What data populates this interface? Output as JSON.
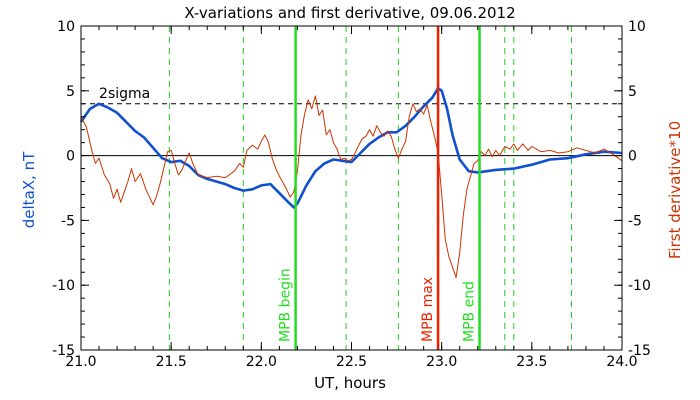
{
  "chart_data": {
    "type": "line",
    "title": "X-variations and first derivative, 09.06.2012",
    "xlabel": "UT, hours",
    "ylabel_left": "deltaX, nT",
    "ylabel_right": "First derivative*10",
    "xlim": [
      21.0,
      24.0
    ],
    "ylim": [
      -15,
      10
    ],
    "x_ticks": [
      21.0,
      21.5,
      22.0,
      22.5,
      23.0,
      23.5,
      24.0
    ],
    "x_tick_labels": [
      "21.0",
      "21.5",
      "22.0",
      "22.5",
      "23.0",
      "23.5",
      "24.0"
    ],
    "y_ticks": [
      10,
      5,
      0,
      -5,
      -10,
      -15
    ],
    "y_tick_labels": [
      "10",
      "5",
      "0",
      "-5",
      "-10",
      "-15"
    ],
    "series": [
      {
        "axis": "left",
        "color": "#1050d0",
        "points": [
          [
            21.0,
            2.6
          ],
          [
            21.05,
            3.6
          ],
          [
            21.1,
            4.0
          ],
          [
            21.15,
            3.7
          ],
          [
            21.2,
            3.3
          ],
          [
            21.25,
            2.6
          ],
          [
            21.3,
            1.9
          ],
          [
            21.35,
            1.4
          ],
          [
            21.4,
            0.6
          ],
          [
            21.45,
            -0.2
          ],
          [
            21.5,
            -0.5
          ],
          [
            21.55,
            -0.4
          ],
          [
            21.6,
            -0.8
          ],
          [
            21.65,
            -1.5
          ],
          [
            21.7,
            -1.8
          ],
          [
            21.75,
            -2.0
          ],
          [
            21.8,
            -2.2
          ],
          [
            21.85,
            -2.5
          ],
          [
            21.9,
            -2.7
          ],
          [
            21.95,
            -2.6
          ],
          [
            22.0,
            -2.3
          ],
          [
            22.05,
            -2.2
          ],
          [
            22.1,
            -2.9
          ],
          [
            22.15,
            -3.6
          ],
          [
            22.18,
            -4.0
          ],
          [
            22.2,
            -3.7
          ],
          [
            22.25,
            -2.3
          ],
          [
            22.3,
            -1.2
          ],
          [
            22.35,
            -0.6
          ],
          [
            22.4,
            -0.3
          ],
          [
            22.45,
            -0.4
          ],
          [
            22.5,
            -0.5
          ],
          [
            22.55,
            0.2
          ],
          [
            22.6,
            0.9
          ],
          [
            22.65,
            1.4
          ],
          [
            22.7,
            1.8
          ],
          [
            22.75,
            1.8
          ],
          [
            22.8,
            2.3
          ],
          [
            22.85,
            3.0
          ],
          [
            22.9,
            3.8
          ],
          [
            22.95,
            4.5
          ],
          [
            22.98,
            5.2
          ],
          [
            23.0,
            5.0
          ],
          [
            23.03,
            3.6
          ],
          [
            23.06,
            1.6
          ],
          [
            23.1,
            -0.3
          ],
          [
            23.15,
            -1.2
          ],
          [
            23.2,
            -1.3
          ],
          [
            23.25,
            -1.2
          ],
          [
            23.3,
            -1.1
          ],
          [
            23.4,
            -1.0
          ],
          [
            23.5,
            -0.7
          ],
          [
            23.6,
            -0.3
          ],
          [
            23.7,
            -0.2
          ],
          [
            23.8,
            0.1
          ],
          [
            23.9,
            0.3
          ],
          [
            24.0,
            0.2
          ]
        ]
      },
      {
        "axis": "right",
        "color": "#cc3300",
        "points": [
          [
            21.0,
            3.0
          ],
          [
            21.03,
            2.2
          ],
          [
            21.06,
            0.4
          ],
          [
            21.08,
            -0.6
          ],
          [
            21.1,
            -0.2
          ],
          [
            21.13,
            -1.5
          ],
          [
            21.16,
            -2.2
          ],
          [
            21.18,
            -3.3
          ],
          [
            21.2,
            -2.6
          ],
          [
            21.22,
            -3.6
          ],
          [
            21.24,
            -2.8
          ],
          [
            21.26,
            -2.0
          ],
          [
            21.28,
            -1.0
          ],
          [
            21.3,
            -2.0
          ],
          [
            21.33,
            -1.4
          ],
          [
            21.36,
            -2.6
          ],
          [
            21.38,
            -3.2
          ],
          [
            21.4,
            -3.8
          ],
          [
            21.42,
            -3.1
          ],
          [
            21.44,
            -2.1
          ],
          [
            21.46,
            -0.9
          ],
          [
            21.48,
            0.3
          ],
          [
            21.5,
            0.4
          ],
          [
            21.52,
            -0.6
          ],
          [
            21.54,
            -1.5
          ],
          [
            21.56,
            -1.1
          ],
          [
            21.58,
            -0.4
          ],
          [
            21.6,
            0.2
          ],
          [
            21.62,
            -0.6
          ],
          [
            21.65,
            -1.5
          ],
          [
            21.7,
            -1.7
          ],
          [
            21.75,
            -1.6
          ],
          [
            21.8,
            -1.7
          ],
          [
            21.85,
            -1.2
          ],
          [
            21.88,
            -0.6
          ],
          [
            21.9,
            -0.9
          ],
          [
            21.92,
            0.4
          ],
          [
            21.95,
            0.8
          ],
          [
            21.98,
            0.5
          ],
          [
            22.0,
            1.1
          ],
          [
            22.02,
            1.6
          ],
          [
            22.04,
            1.0
          ],
          [
            22.06,
            -0.2
          ],
          [
            22.08,
            -1.0
          ],
          [
            22.1,
            -1.6
          ],
          [
            22.12,
            -2.1
          ],
          [
            22.14,
            -2.6
          ],
          [
            22.16,
            -3.2
          ],
          [
            22.18,
            -2.8
          ],
          [
            22.2,
            -1.2
          ],
          [
            22.22,
            1.6
          ],
          [
            22.24,
            3.2
          ],
          [
            22.26,
            4.3
          ],
          [
            22.28,
            3.6
          ],
          [
            22.3,
            4.6
          ],
          [
            22.32,
            3.1
          ],
          [
            22.34,
            3.5
          ],
          [
            22.36,
            1.6
          ],
          [
            22.38,
            2.0
          ],
          [
            22.4,
            1.0
          ],
          [
            22.42,
            0.5
          ],
          [
            22.44,
            -0.3
          ],
          [
            22.46,
            -0.2
          ],
          [
            22.48,
            -0.4
          ],
          [
            22.5,
            -0.3
          ],
          [
            22.52,
            0.2
          ],
          [
            22.54,
            0.8
          ],
          [
            22.56,
            1.3
          ],
          [
            22.58,
            1.5
          ],
          [
            22.6,
            2.0
          ],
          [
            22.62,
            1.5
          ],
          [
            22.64,
            2.3
          ],
          [
            22.66,
            1.8
          ],
          [
            22.68,
            1.5
          ],
          [
            22.7,
            1.9
          ],
          [
            22.72,
            1.5
          ],
          [
            22.74,
            0.5
          ],
          [
            22.76,
            -0.2
          ],
          [
            22.78,
            0.5
          ],
          [
            22.8,
            1.1
          ],
          [
            22.82,
            3.0
          ],
          [
            22.84,
            4.0
          ],
          [
            22.86,
            3.4
          ],
          [
            22.88,
            3.6
          ],
          [
            22.9,
            3.2
          ],
          [
            22.92,
            3.9
          ],
          [
            22.94,
            2.6
          ],
          [
            22.96,
            1.5
          ],
          [
            22.98,
            0.2
          ],
          [
            23.0,
            -3.0
          ],
          [
            23.02,
            -6.5
          ],
          [
            23.04,
            -7.8
          ],
          [
            23.06,
            -8.6
          ],
          [
            23.08,
            -9.4
          ],
          [
            23.1,
            -7.5
          ],
          [
            23.12,
            -4.6
          ],
          [
            23.14,
            -2.6
          ],
          [
            23.16,
            -1.6
          ],
          [
            23.18,
            -0.6
          ],
          [
            23.2,
            -0.4
          ],
          [
            23.22,
            0.3
          ],
          [
            23.24,
            0.0
          ],
          [
            23.26,
            0.5
          ],
          [
            23.28,
            -0.1
          ],
          [
            23.3,
            0.4
          ],
          [
            23.32,
            0.0
          ],
          [
            23.35,
            0.7
          ],
          [
            23.38,
            0.5
          ],
          [
            23.4,
            0.9
          ],
          [
            23.42,
            0.4
          ],
          [
            23.45,
            0.9
          ],
          [
            23.48,
            0.4
          ],
          [
            23.5,
            0.7
          ],
          [
            23.55,
            0.3
          ],
          [
            23.6,
            0.4
          ],
          [
            23.65,
            0.2
          ],
          [
            23.7,
            0.3
          ],
          [
            23.75,
            0.6
          ],
          [
            23.8,
            0.4
          ],
          [
            23.85,
            0.2
          ],
          [
            23.9,
            0.5
          ],
          [
            23.95,
            0.1
          ],
          [
            24.0,
            -0.4
          ]
        ]
      }
    ],
    "zero_line": 0,
    "threshold": {
      "label": "2sigma",
      "y": 4.0
    },
    "dashed_verticals": [
      21.49,
      21.9,
      22.47,
      22.76,
      23.35,
      23.4,
      23.72
    ],
    "markers": [
      {
        "label": "MPB begin",
        "x": 22.19,
        "color": "#22dd22"
      },
      {
        "label": "MPB max",
        "x": 22.98,
        "color": "#ee2200"
      },
      {
        "label": "MPB end",
        "x": 23.21,
        "color": "#22dd22"
      }
    ]
  },
  "colors": {
    "frame": "#000000",
    "dashed_vertical": "#22cc22",
    "left_label": "#1050d0",
    "right_label": "#cc3300"
  }
}
